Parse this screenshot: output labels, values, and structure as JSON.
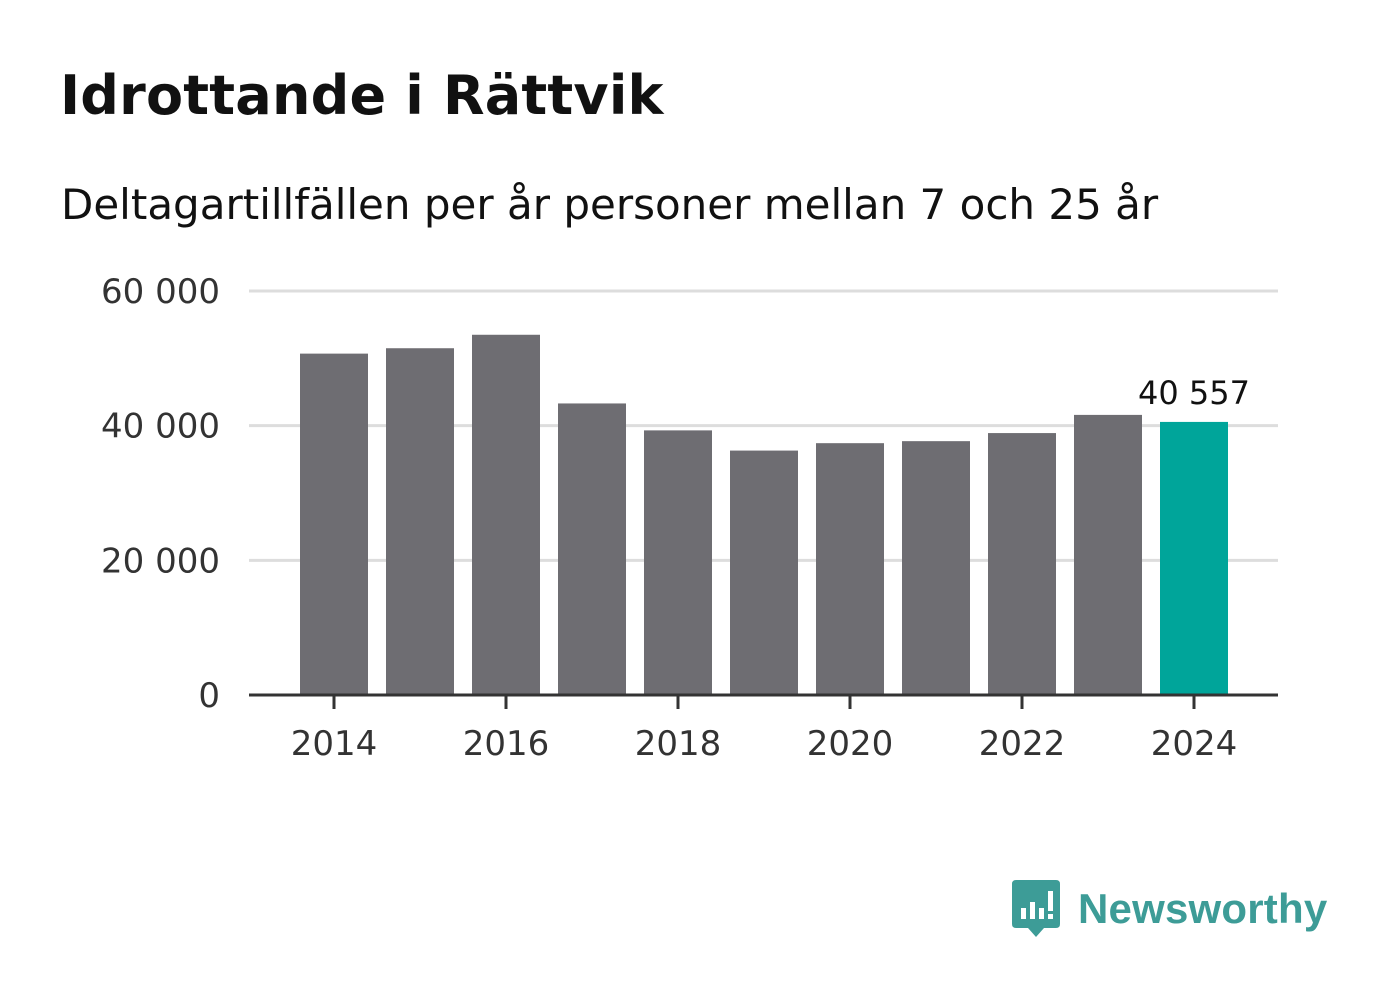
{
  "title": "Idrottande i Rättvik",
  "subtitle": "Deltagartillfällen per år personer mellan 7 och 25 år",
  "brand": {
    "name": "Newsworthy"
  },
  "colors": {
    "bar": "#6e6d72",
    "highlight": "#00a59a",
    "grid": "#dddddd",
    "axis": "#333333",
    "brand": "#3d9c97"
  },
  "chart_data": {
    "type": "bar",
    "title": "Idrottande i Rättvik",
    "subtitle": "Deltagartillfällen per år personer mellan 7 och 25 år",
    "xlabel": "",
    "ylabel": "",
    "categories": [
      "2014",
      "2015",
      "2016",
      "2017",
      "2018",
      "2019",
      "2020",
      "2021",
      "2022",
      "2023",
      "2024"
    ],
    "values": [
      50700,
      51500,
      53500,
      43300,
      39300,
      36300,
      37400,
      37700,
      38900,
      41600,
      40557
    ],
    "highlight_index": 10,
    "highlight_label": "40 557",
    "ylim": [
      0,
      60000
    ],
    "y_ticks": [
      0,
      20000,
      40000,
      60000
    ],
    "y_tick_labels": [
      "0",
      "20 000",
      "40 000",
      "60 000"
    ],
    "x_tick_labels": [
      "2014",
      "2016",
      "2018",
      "2020",
      "2022",
      "2024"
    ],
    "grid": true
  }
}
